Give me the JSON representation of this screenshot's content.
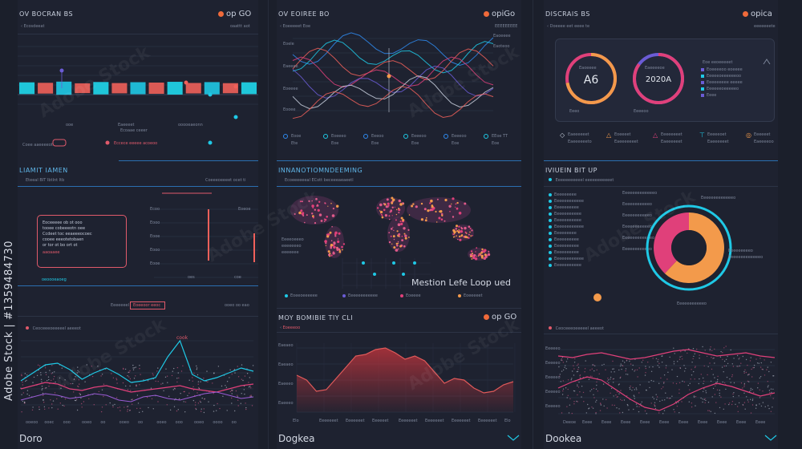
{
  "left_column": {
    "header": {
      "title": "OV BOCRAN BS",
      "brand": "op GO",
      "nav": "Ecosdeeat",
      "right_note": "oaattt aot"
    },
    "bar_labels": [
      "Eaeeeet",
      "Ecoaae ceeer",
      "ooooeaeonn",
      "ooe"
    ],
    "bar_values": [
      0.55,
      0.45,
      0.7,
      0.35,
      0.62,
      0.4,
      0.58,
      0.5,
      0.66,
      0.42,
      0.6,
      0.38,
      0.56
    ],
    "bar_footer": [
      "Coee aaeeeeot",
      "Eccece eeeee acoeoo"
    ],
    "mid_title": "LIAMIT IAMEN",
    "mid_sub": "Eteeal BIT IbtInt Itb",
    "mid_right": "Coeeeoeeeet ocet ti",
    "text_box_lines": [
      "Eoceeeee ob ot ooo",
      "tooee cobeeeotn oee",
      "Ccdeet toc eeaeeeocoec",
      "cooee eeeotetobaen",
      "or tor ot bo ort ot"
    ],
    "text_box_red": "aaoaaee",
    "text_box_blue": "oeoooeaoeg",
    "spike_labels": [
      "Ecoo",
      "Eooo",
      "Eooe",
      "Eooo",
      "Eooe",
      "Eoeoe"
    ],
    "spike_bottom": [
      "oes",
      "coe"
    ],
    "filter_label": "Eeeeeeel",
    "filter_button": "Eoeeoor eeoc",
    "filter_right": "ooeo oo eao",
    "wave_header": "Ceoceeeoeeeeel aeeeot",
    "wave_peak": "cook",
    "wave_axis": [
      "ooeoo",
      "ooec",
      "ooo",
      "ooeo",
      "oo",
      "ooeo",
      "oo",
      "ooeo",
      "ooo",
      "ooeo",
      "oooo",
      "oo"
    ],
    "footer": "Doro"
  },
  "middle_column": {
    "header": {
      "title": "OV EOIREE BO",
      "brand": "opiGo",
      "nav": "Eoeeeeet Eoe",
      "right_note": "EEEEEEEEE"
    },
    "side_labels": [
      "Eoele",
      "Eaeeee",
      "Eoeeee",
      "Eooee"
    ],
    "right_labels": [
      "Eaoeeee",
      "Eaoteoo"
    ],
    "stat_items": [
      {
        "label": "Eooe",
        "value": "Ete"
      },
      {
        "label": "Eoeeeo",
        "value": "Eoe"
      },
      {
        "label": "Eeeoo",
        "value": "Eoe"
      },
      {
        "label": "Eeeeoo",
        "value": "Eoe"
      },
      {
        "label": "Eeeeoo",
        "value": "Eoe"
      },
      {
        "label": "EEoe TT",
        "value": "Eoe"
      }
    ],
    "map_title": "INNANOTIOMNDEEMING",
    "map_sub": "Ecoeeeeeeal ECott beceeeaeaeetl",
    "map_headline": "Mestion Lefe Loop ued",
    "map_legend": [
      "Eoeeoeeeeee",
      "Eeeeeeeeeeee",
      "Eoeeee",
      "Eoeeeeet"
    ],
    "map_left_labels": [
      "Eeeeoeeeo",
      "eeeeeeeo",
      "eeeeeee"
    ],
    "area_title": "MOY BOMIBIE TIY CLI",
    "area_brand": "op GO",
    "area_sub": "Eoeeeoo",
    "area_y": [
      "Eaeaeo",
      "Eaeaeo",
      "Eaeeeo",
      "Eaeeeo"
    ],
    "area_x": [
      "Elo",
      "Eeeeeeet",
      "Eeeeeeet",
      "Eeeeeet",
      "Eeeeeeet",
      "Eeeeeeet",
      "Eeeeeeet",
      "Eeeeeeet",
      "Elo"
    ],
    "footer": "Dogkea"
  },
  "right_column": {
    "header": {
      "title": "DISCRAIS BS",
      "brand": "opica",
      "nav": "Doeeee eet eeee te",
      "right_note": "eeeeeeete"
    },
    "ring_left": {
      "label": "Eaoeeee",
      "value": "A6",
      "foot": "Eeeo"
    },
    "ring_right": {
      "label": "Eaeeeeoe",
      "value": "2020A",
      "foot": "Eeeeoo"
    },
    "ring_list_title": "Eoe eeoeeeeet",
    "ring_list": [
      "Eoeeeeoo eoeeee",
      "Eeeeeoeeeeeeoo",
      "Eeeeeeeee eeeee",
      "Eeeeeeoeeeeeo",
      "Eeee"
    ],
    "alerts": [
      {
        "label": "Eaeeeeeet",
        "sub": "Eaeeeeeeto"
      },
      {
        "label": "Eoeeeet",
        "sub": "Eaeeeeeeet"
      },
      {
        "label": "Eeeeeeeet",
        "sub": "Eaeeeeeet"
      },
      {
        "label": "Eeeeeoet",
        "sub": "Eaeeeeeet"
      },
      {
        "label": "Eeeeeet",
        "sub": "Eaeeeeoo"
      }
    ],
    "donut_title": "IVIUEIN BIT UP",
    "donut_sub": "Eeeeeeeeeeel eeeeeeeeeeet",
    "donut_list": [
      "Eeeeeeeee",
      "Eeeeeeeeeeee",
      "Eeeeeeeeee",
      "Eeeeeeeeeee",
      "Eeeeeeeeeee",
      "Eeeeeeeeeeee",
      "Eeeeeeeee",
      "Eeeeeeeeee",
      "Eeeeeeeeee",
      "Eeeeeeeeee",
      "Eeeeeeeeeeee",
      "Eeeeeeeeeee"
    ],
    "donut_right_labels": [
      "Eeeeeeeeeeeeeo",
      "Eeeeeeeeeeeo",
      "Eeeeeeeeeeeo",
      "Eeeeeeeeeeeo",
      "Eeeeeeeeeeeeo",
      "Eeeeeeeeeeeo"
    ],
    "donut_callouts": [
      "Eeeeeeeeeeeeeo",
      "Eeeeeeeeeo",
      "Eeeeeeeeeeeeeo",
      "Eeeeeeeeeeeo"
    ],
    "donut_slices": [
      0.62,
      0.38
    ],
    "mesh_header": "Ceoceeeoeeeeel aeeeot",
    "mesh_y": [
      "Eeeeeo",
      "Eeeeeo",
      "Eeeeeo",
      "Eeeeeo",
      "Eeeeeo"
    ],
    "mesh_x": [
      "Deeoe",
      "Eeee",
      "Eeee",
      "Eeee",
      "Eeee",
      "Eeee",
      "Eeee",
      "Eeee",
      "Eeee",
      "Eeee",
      "Eeee"
    ],
    "footer": "Dookea"
  },
  "watermark": {
    "brand": "Adobe Stock",
    "id": "Adobe Stock | #1359484730"
  },
  "colors": {
    "cyan": "#1fc9e6",
    "coral": "#f06a5a",
    "magenta": "#e0407a",
    "purple": "#6b5cd6",
    "orange": "#f39a4b",
    "bg": "#1b1f2b"
  }
}
